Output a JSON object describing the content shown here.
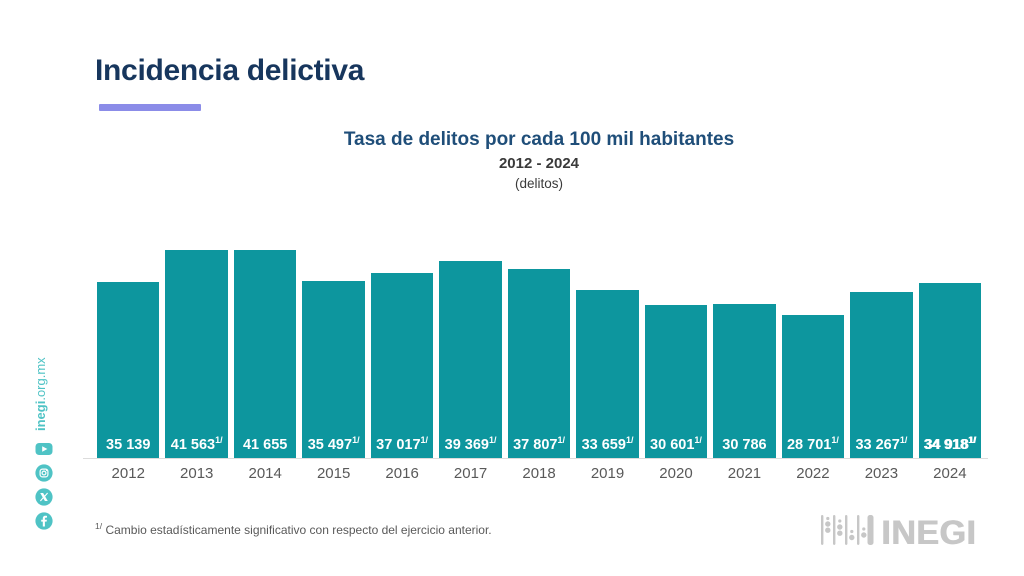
{
  "colors": {
    "bar_teal": "#0d969e",
    "sidebar_teal": "#4fc3c5",
    "title_navy": "#17365d",
    "chart_title_blue": "#1f4e79",
    "underline_purple": "#8b8ce8",
    "logo_gray": "#c7c7c7",
    "value_label_color": "#ffffff",
    "axis_text_gray": "#595959"
  },
  "header": {
    "title": "Incidencia delictiva"
  },
  "sidebar": {
    "site_bold": "inegi",
    "site_rest": ".org.mx",
    "icons": [
      "youtube-icon",
      "instagram-icon",
      "x-icon",
      "facebook-icon"
    ]
  },
  "chart_data": {
    "type": "bar",
    "title": "Tasa de delitos por cada 100 mil habitantes",
    "subtitle": "2012 - 2024",
    "unit_label": "(delitos)",
    "categories": [
      "2012",
      "2013",
      "2014",
      "2015",
      "2016",
      "2017",
      "2018",
      "2019",
      "2020",
      "2021",
      "2022",
      "2023",
      "2024"
    ],
    "values": [
      35139,
      41563,
      41655,
      35497,
      37017,
      39369,
      37807,
      33659,
      30601,
      30786,
      28701,
      33267,
      34918
    ],
    "labels": [
      "35 139",
      "41 563",
      "41 655",
      "35 497",
      "37 017",
      "39 369",
      "37 807",
      "33 659",
      "30 601",
      "30 786",
      "28 701",
      "33 267",
      "34 918"
    ],
    "footnote_flags": [
      false,
      true,
      false,
      true,
      true,
      true,
      true,
      true,
      true,
      false,
      true,
      true,
      true
    ],
    "footnote_marker": "1/",
    "ylim": [
      0,
      45000
    ],
    "grid": false,
    "legend": null,
    "value_labels_position": "inside-bottom"
  },
  "footnote": {
    "marker": "1/",
    "text": "Cambio estadísticamente significativo con respecto del ejercicio anterior."
  },
  "branding": {
    "logo_text": "INEGI"
  }
}
